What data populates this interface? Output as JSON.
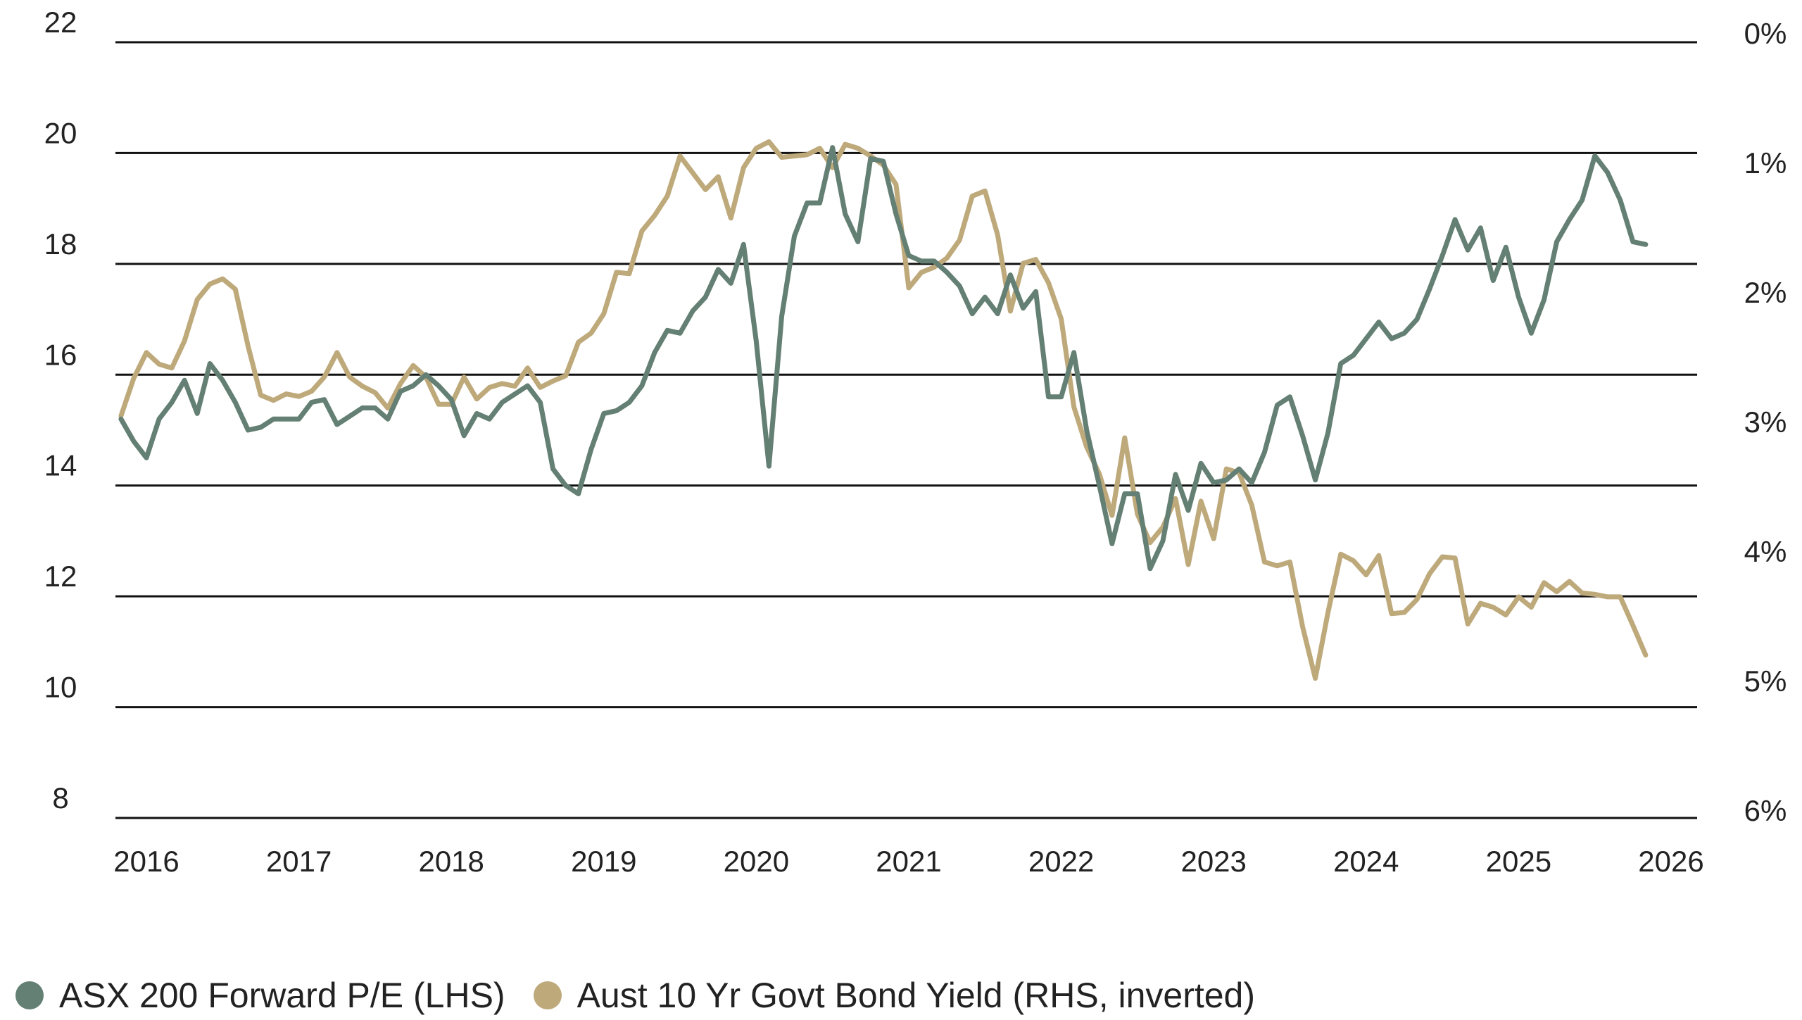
{
  "chart_data": {
    "type": "line",
    "title": "",
    "xlabel": "",
    "ylabel_left": "",
    "ylabel_right": "",
    "grid": true,
    "legend_position": "bottom-left",
    "x_tick_labels": [
      "2016",
      "2017",
      "2018",
      "2019",
      "2020",
      "2021",
      "2022",
      "2023",
      "2024",
      "2025",
      "2026"
    ],
    "x_tick_values": [
      2016,
      2017,
      2018,
      2019,
      2020,
      2021,
      2022,
      2023,
      2024,
      2025,
      2026
    ],
    "xlim": [
      2015.83,
      2026.13
    ],
    "y_left": {
      "ticks": [
        22,
        20,
        18,
        16,
        14,
        12,
        10,
        8
      ],
      "tick_labels": [
        "22",
        "20",
        "18",
        "16",
        "14",
        "12",
        "10",
        "8"
      ],
      "ylim": [
        8,
        22
      ]
    },
    "y_right": {
      "ticks": [
        0,
        1,
        2,
        3,
        4,
        5,
        6
      ],
      "tick_labels": [
        "0%",
        "1%",
        "2%",
        "3%",
        "4%",
        "5%",
        "6%"
      ],
      "ylim": [
        0,
        6
      ],
      "inverted": true
    },
    "x_start": "2015-11",
    "x_frequency": "monthly",
    "series": [
      {
        "name": "ASX 200 Forward P/E (LHS)",
        "axis": "left",
        "color": "#647f74",
        "values": [
          15.2,
          14.8,
          14.5,
          15.2,
          15.5,
          15.9,
          15.3,
          16.2,
          15.9,
          15.5,
          15.0,
          15.05,
          15.2,
          15.2,
          15.2,
          15.5,
          15.55,
          15.1,
          15.25,
          15.4,
          15.4,
          15.2,
          15.7,
          15.8,
          16.0,
          15.8,
          15.55,
          14.9,
          15.3,
          15.2,
          15.5,
          15.65,
          15.8,
          15.5,
          14.3,
          14.0,
          13.85,
          14.65,
          15.3,
          15.35,
          15.5,
          15.8,
          16.4,
          16.8,
          16.75,
          17.15,
          17.4,
          17.9,
          17.65,
          18.35,
          16.6,
          14.35,
          17.05,
          18.5,
          19.1,
          19.1,
          20.1,
          18.9,
          18.4,
          19.9,
          19.85,
          18.9,
          18.15,
          18.05,
          18.05,
          17.85,
          17.6,
          17.1,
          17.4,
          17.1,
          17.8,
          17.2,
          17.5,
          15.6,
          15.6,
          16.4,
          15.0,
          14.0,
          12.95,
          13.85,
          13.85,
          12.5,
          13.0,
          14.2,
          13.55,
          14.4,
          14.05,
          14.1,
          14.3,
          14.05,
          14.6,
          15.45,
          15.6,
          14.9,
          14.1,
          14.95,
          16.2,
          16.35,
          16.65,
          16.95,
          16.65,
          16.75,
          17.0,
          17.55,
          18.15,
          18.8,
          18.25,
          18.65,
          17.7,
          18.3,
          17.4,
          16.75,
          17.35,
          18.4,
          18.8,
          19.15,
          19.95,
          19.65,
          19.15,
          18.4,
          18.35
        ]
      },
      {
        "name": "Aust 10 Yr Govt Bond Yield (RHS, inverted)",
        "axis": "right",
        "color": "#bea97b",
        "values": [
          2.89,
          2.6,
          2.4,
          2.49,
          2.52,
          2.31,
          1.99,
          1.87,
          1.83,
          1.91,
          2.35,
          2.73,
          2.77,
          2.72,
          2.74,
          2.7,
          2.59,
          2.4,
          2.59,
          2.66,
          2.71,
          2.83,
          2.64,
          2.5,
          2.59,
          2.8,
          2.8,
          2.59,
          2.76,
          2.67,
          2.64,
          2.66,
          2.52,
          2.67,
          2.62,
          2.58,
          2.32,
          2.25,
          2.1,
          1.78,
          1.79,
          1.46,
          1.34,
          1.19,
          0.88,
          1.01,
          1.14,
          1.04,
          1.36,
          0.97,
          0.82,
          0.77,
          0.89,
          0.88,
          0.87,
          0.82,
          0.97,
          0.79,
          0.82,
          0.88,
          0.95,
          1.1,
          1.9,
          1.78,
          1.74,
          1.67,
          1.53,
          1.19,
          1.15,
          1.49,
          2.08,
          1.71,
          1.68,
          1.86,
          2.14,
          2.82,
          3.13,
          3.34,
          3.66,
          3.06,
          3.65,
          3.87,
          3.75,
          3.53,
          4.04,
          3.55,
          3.84,
          3.3,
          3.33,
          3.58,
          4.02,
          4.05,
          4.02,
          4.52,
          4.92,
          4.41,
          3.96,
          4.01,
          4.12,
          3.97,
          4.42,
          4.41,
          4.31,
          4.11,
          3.98,
          3.99,
          4.5,
          4.34,
          4.37,
          4.43,
          4.29,
          4.37,
          4.18,
          4.25,
          4.17,
          4.26,
          4.27,
          4.29,
          4.29,
          4.51,
          4.74
        ]
      }
    ]
  },
  "legend": {
    "items": [
      {
        "label": "ASX 200 Forward P/E (LHS)",
        "color": "#647f74"
      },
      {
        "label": "Aust 10 Yr Govt Bond Yield (RHS, inverted)",
        "color": "#bea97b"
      }
    ]
  }
}
